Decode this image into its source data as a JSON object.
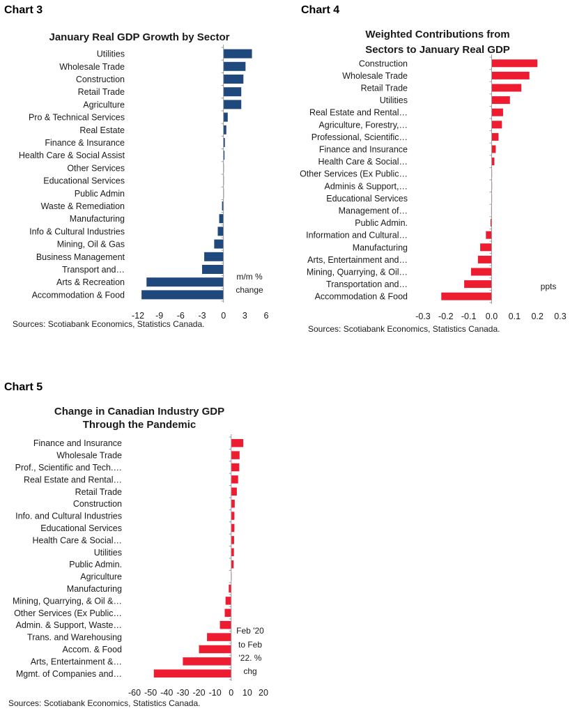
{
  "chart_data": [
    {
      "id": "chart3",
      "label": "Chart 3",
      "type": "bar",
      "orientation": "horizontal",
      "title": [
        "January Real GDP Growth by Sector"
      ],
      "categories": [
        "Utilities",
        "Wholesale Trade",
        "Construction",
        "Retail Trade",
        "Agriculture",
        "Pro & Technical Services",
        "Real Estate",
        "Finance & Insurance",
        "Health Care & Social Assist",
        "Other Services",
        "Educational Services",
        "Public Admin",
        "Waste & Remediation",
        "Manufacturing",
        "Info & Cultural Industries",
        "Mining, Oil & Gas",
        "Business Management",
        "Transport and…",
        "Arts & Recreation",
        "Accommodation & Food"
      ],
      "values": [
        4.0,
        3.1,
        2.8,
        2.5,
        2.5,
        0.6,
        0.4,
        0.2,
        0.15,
        0.05,
        0.05,
        0.0,
        -0.2,
        -0.6,
        -0.8,
        -1.3,
        -2.7,
        -3.0,
        -10.8,
        -11.5
      ],
      "xticks": [
        -12,
        -9,
        -6,
        -3,
        0,
        3,
        6
      ],
      "xlim": [
        -12,
        6
      ],
      "unit_note": [
        "m/m %",
        "change"
      ],
      "color": "#1f497d",
      "source": "Sources: Scotiabank Economics, Statistics Canada."
    },
    {
      "id": "chart4",
      "label": "Chart 4",
      "type": "bar",
      "orientation": "horizontal",
      "title": [
        "Weighted Contributions from",
        "Sectors to January Real GDP"
      ],
      "categories": [
        "Construction",
        "Wholesale Trade",
        "Retail Trade",
        "Utilities",
        "Real Estate and Rental…",
        "Agriculture, Forestry,…",
        "Professional, Scientific…",
        "Finance and Insurance",
        "Health Care & Social…",
        "Other Services (Ex Public…",
        "Adminis & Support,…",
        "Educational Services",
        "Management of…",
        "Public Admin.",
        "Information and Cultural…",
        "Manufacturing",
        "Arts, Entertainment and…",
        "Mining, Quarrying, & Oil…",
        "Transportation and…",
        "Accommodation & Food"
      ],
      "values": [
        0.2,
        0.165,
        0.13,
        0.08,
        0.05,
        0.045,
        0.03,
        0.018,
        0.012,
        0.002,
        0.002,
        0.001,
        -0.002,
        -0.005,
        -0.025,
        -0.05,
        -0.06,
        -0.09,
        -0.12,
        -0.22
      ],
      "xticks": [
        -0.3,
        -0.2,
        -0.1,
        0.0,
        0.1,
        0.2,
        0.3
      ],
      "xtick_labels": [
        "-0.3",
        "-0.2",
        "-0.1",
        "0.0",
        "0.1",
        "0.2",
        "0.3"
      ],
      "xlim": [
        -0.3,
        0.3
      ],
      "unit_note": [
        "ppts"
      ],
      "color": "#ee1c31",
      "source": "Sources: Scotiabank Economics, Statistics Canada."
    },
    {
      "id": "chart5",
      "label": "Chart 5",
      "type": "bar",
      "orientation": "horizontal",
      "title": [
        "Change in Canadian Industry GDP",
        "Through the Pandemic"
      ],
      "categories": [
        "Finance and Insurance",
        "Wholesale Trade",
        "Prof., Scientific and Tech.…",
        "Real Estate and Rental…",
        "Retail Trade",
        "Construction",
        "Info. and Cultural Industries",
        "Educational Services",
        "Health Care & Social…",
        "Utilities",
        "Public Admin.",
        "Agriculture",
        "Manufacturing",
        "Mining, Quarrying, & Oil &…",
        "Other Services (Ex Public…",
        "Admin. & Support, Waste…",
        "Trans. and Warehousing",
        "Accom. & Food",
        "Arts, Entertainment &…",
        "Mgmt. of Companies and…"
      ],
      "values": [
        7.5,
        5.2,
        5.0,
        4.3,
        3.5,
        2.2,
        2.0,
        2.0,
        1.8,
        1.7,
        1.5,
        0.0,
        -1.5,
        -3.5,
        -4.0,
        -7.0,
        -15.0,
        -20.0,
        -30.0,
        -48.0
      ],
      "xticks": [
        -60,
        -50,
        -40,
        -30,
        -20,
        -10,
        0,
        10,
        20
      ],
      "xlim": [
        -60,
        20
      ],
      "unit_note": [
        "Feb '20",
        "to Feb",
        "'22. %",
        "chg"
      ],
      "color": "#ee1c31",
      "source": "Sources: Scotiabank Economics, Statistics Canada."
    }
  ]
}
